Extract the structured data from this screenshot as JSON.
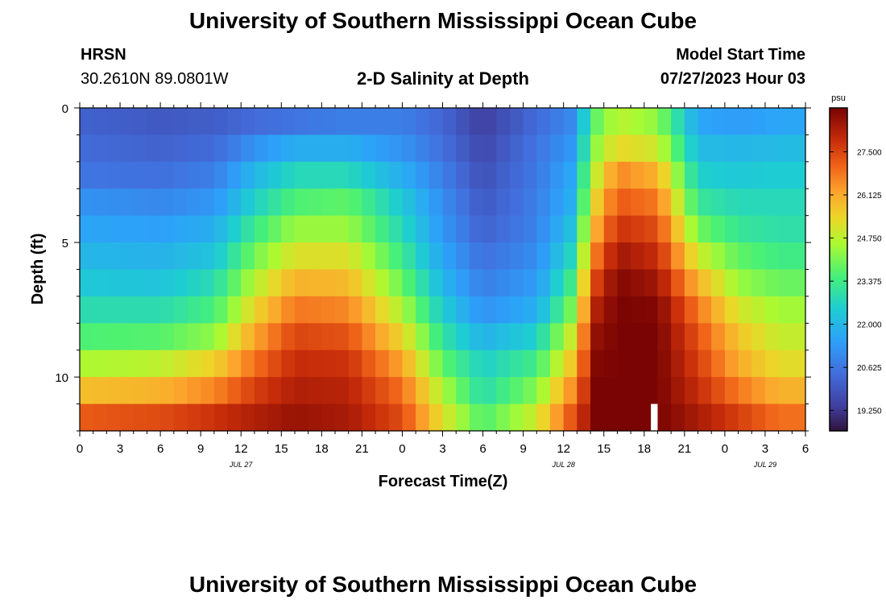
{
  "page": {
    "title": "University of Southern Mississippi Ocean Cube",
    "footer_title": "University of Southern Mississippi Ocean Cube",
    "station": "HRSN",
    "coords": "30.2610N  89.0801W",
    "model_label": "Model Start Time",
    "model_time": "07/27/2023 Hour 03"
  },
  "chart_data": {
    "type": "heatmap",
    "title": "2-D Salinity at Depth",
    "xlabel": "Forecast Time(Z)",
    "ylabel": "Depth (ft)",
    "x_ticks": [
      "0",
      "3",
      "6",
      "9",
      "12",
      "15",
      "18",
      "21",
      "0",
      "3",
      "6",
      "9",
      "12",
      "15",
      "18",
      "21",
      "0",
      "3",
      "6"
    ],
    "x_range_hours": [
      0,
      54
    ],
    "date_labels": [
      {
        "label": "JUL 27",
        "hour": 12
      },
      {
        "label": "JUL 28",
        "hour": 36
      },
      {
        "label": "JUL 29",
        "hour": 51
      }
    ],
    "y_ticks": [
      "0",
      "5",
      "10"
    ],
    "y_range_ft": [
      0,
      12
    ],
    "colorbar": {
      "unit": "psu",
      "ticks": [
        "27.500",
        "26.125",
        "24.750",
        "23.375",
        "22.000",
        "20.625",
        "19.250"
      ],
      "tick_values": [
        27.5,
        26.125,
        24.75,
        23.375,
        22.0,
        20.625,
        19.25
      ],
      "range": [
        18.6,
        28.9
      ]
    },
    "layers_ft": [
      0.5,
      1.5,
      2.5,
      3.5,
      4.5,
      5.5,
      6.5,
      7.5,
      8.5,
      9.5,
      10.5,
      11.5
    ],
    "time_step_hours": 1,
    "profile_hours": [
      0,
      6,
      10,
      13,
      16,
      20,
      24,
      27,
      30,
      34,
      36.5,
      38.5,
      40,
      43,
      46,
      49,
      52,
      54
    ],
    "salinity_psu": [
      [
        20.2,
        20.0,
        20.1,
        20.4,
        20.6,
        20.8,
        20.8,
        20.3,
        19.4,
        20.4,
        21.0,
        23.9,
        24.8,
        24.3,
        21.6,
        21.4,
        21.6,
        21.6
      ],
      [
        20.4,
        20.2,
        20.4,
        21.2,
        21.8,
        21.8,
        21.2,
        20.5,
        19.6,
        20.6,
        21.3,
        24.4,
        25.4,
        25.0,
        22.1,
        22.0,
        22.1,
        22.1
      ],
      [
        20.6,
        20.5,
        20.8,
        22.0,
        22.8,
        22.8,
        21.8,
        20.8,
        19.8,
        20.7,
        21.6,
        25.0,
        26.6,
        26.0,
        22.6,
        22.4,
        22.5,
        22.5
      ],
      [
        21.2,
        21.0,
        21.3,
        22.6,
        23.6,
        23.8,
        22.4,
        21.1,
        20.0,
        20.8,
        21.8,
        25.6,
        27.2,
        26.8,
        23.2,
        22.8,
        22.8,
        22.8
      ],
      [
        21.6,
        21.5,
        21.8,
        23.3,
        24.4,
        24.4,
        22.8,
        21.3,
        20.2,
        20.9,
        22.2,
        26.2,
        27.8,
        27.4,
        24.0,
        23.2,
        23.0,
        23.0
      ],
      [
        22.0,
        21.9,
        22.3,
        24.0,
        25.2,
        25.2,
        23.3,
        21.6,
        20.5,
        21.1,
        22.7,
        26.9,
        28.4,
        27.9,
        25.0,
        23.8,
        23.4,
        23.4
      ],
      [
        22.4,
        22.3,
        22.9,
        24.7,
        26.0,
        25.9,
        23.9,
        22.0,
        20.8,
        21.4,
        23.3,
        27.6,
        28.8,
        28.4,
        26.0,
        24.4,
        23.9,
        23.9
      ],
      [
        22.9,
        22.9,
        23.5,
        25.4,
        26.8,
        26.6,
        24.6,
        22.5,
        21.2,
        21.8,
        24.0,
        28.2,
        28.9,
        28.8,
        26.8,
        25.1,
        24.5,
        24.5
      ],
      [
        23.6,
        23.7,
        24.3,
        26.2,
        27.5,
        27.3,
        25.4,
        23.1,
        21.9,
        22.6,
        24.9,
        28.6,
        28.9,
        28.9,
        27.3,
        25.7,
        24.9,
        24.9
      ],
      [
        24.6,
        24.8,
        25.5,
        26.9,
        27.9,
        27.8,
        26.2,
        23.8,
        22.6,
        23.4,
        25.6,
        28.8,
        28.9,
        28.9,
        27.6,
        26.1,
        25.3,
        25.3
      ],
      [
        25.8,
        26.0,
        26.6,
        27.6,
        28.2,
        28.1,
        26.9,
        24.6,
        22.9,
        24.2,
        26.4,
        28.9,
        28.9,
        28.9,
        27.9,
        26.8,
        26.0,
        26.0
      ],
      [
        27.2,
        27.4,
        27.8,
        28.2,
        28.5,
        28.3,
        27.4,
        25.2,
        23.6,
        25.0,
        27.2,
        28.9,
        28.9,
        28.9,
        28.3,
        27.6,
        26.9,
        26.9
      ]
    ],
    "gap": {
      "hour": 42.5,
      "layer_index": 11
    }
  }
}
